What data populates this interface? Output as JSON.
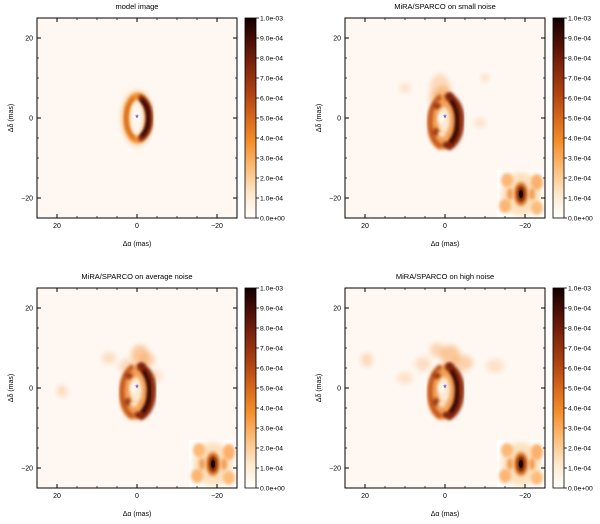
{
  "figure": {
    "panels": [
      {
        "id": "model",
        "title": "model image",
        "xlabel": "Δα (mas)",
        "ylabel": "Δδ (mas)"
      },
      {
        "id": "small",
        "title": "MiRA/SPARCO on small noise",
        "xlabel": "Δα (mas)",
        "ylabel": "Δδ (mas)"
      },
      {
        "id": "average",
        "title": "MiRA/SPARCO on average noise",
        "xlabel": "Δα (mas)",
        "ylabel": "Δδ (mas)"
      },
      {
        "id": "high",
        "title": "MiRA/SPARCO on high noise",
        "xlabel": "Δα (mas)",
        "ylabel": "Δδ (mas)"
      }
    ],
    "colorbar_ticks": [
      "1.0e-03",
      "9.0e-04",
      "8.0e-04",
      "7.0e-04",
      "6.0e-04",
      "5.0e-04",
      "4.0e-04",
      "3.0e-04",
      "2.0e-04",
      "1.0e-04",
      "0.0e+00"
    ],
    "x_ticks": [
      "20",
      "0",
      "−20"
    ],
    "y_ticks": [
      "20",
      "0",
      "−20"
    ]
  },
  "chart_data": [
    {
      "type": "heatmap",
      "title": "model image",
      "xlabel": "Δα (mas)",
      "ylabel": "Δδ (mas)",
      "xlim": [
        25,
        -25
      ],
      "ylim": [
        -25,
        25
      ],
      "x_ticks": [
        20,
        0,
        -20
      ],
      "y_ticks": [
        20,
        0,
        -20
      ],
      "colorbar_range": [
        0.0,
        0.001
      ],
      "colormap": "gist_heat_r",
      "star_marker": [
        0,
        0
      ],
      "features": "elliptical ring centered at (0,0), brightest on the west (right) side"
    },
    {
      "type": "heatmap",
      "title": "MiRA/SPARCO on small noise",
      "xlabel": "Δα (mas)",
      "ylabel": "Δδ (mas)",
      "xlim": [
        25,
        -25
      ],
      "ylim": [
        -25,
        25
      ],
      "x_ticks": [
        20,
        0,
        -20
      ],
      "y_ticks": [
        20,
        0,
        -20
      ],
      "colorbar_range": [
        0.0,
        0.001
      ],
      "colormap": "gist_heat_r",
      "star_marker": [
        0,
        0
      ],
      "features": "reconstructed ring with clumps; PSF inset bottom-right"
    },
    {
      "type": "heatmap",
      "title": "MiRA/SPARCO on average noise",
      "xlabel": "Δα (mas)",
      "ylabel": "Δδ (mas)",
      "xlim": [
        25,
        -25
      ],
      "ylim": [
        -25,
        25
      ],
      "x_ticks": [
        20,
        0,
        -20
      ],
      "y_ticks": [
        20,
        0,
        -20
      ],
      "colorbar_range": [
        0.0,
        0.001
      ],
      "colormap": "gist_heat_r",
      "star_marker": [
        0,
        0
      ],
      "features": "reconstructed ring with clumps; PSF inset bottom-right"
    },
    {
      "type": "heatmap",
      "title": "MiRA/SPARCO on high noise",
      "xlabel": "Δα (mas)",
      "ylabel": "Δδ (mas)",
      "xlim": [
        25,
        -25
      ],
      "ylim": [
        -25,
        25
      ],
      "x_ticks": [
        20,
        0,
        -20
      ],
      "y_ticks": [
        20,
        0,
        -20
      ],
      "colorbar_range": [
        0.0,
        0.001
      ],
      "colormap": "gist_heat_r",
      "star_marker": [
        0,
        0
      ],
      "features": "reconstructed ring with clumps and extended emission; PSF inset bottom-right"
    }
  ]
}
